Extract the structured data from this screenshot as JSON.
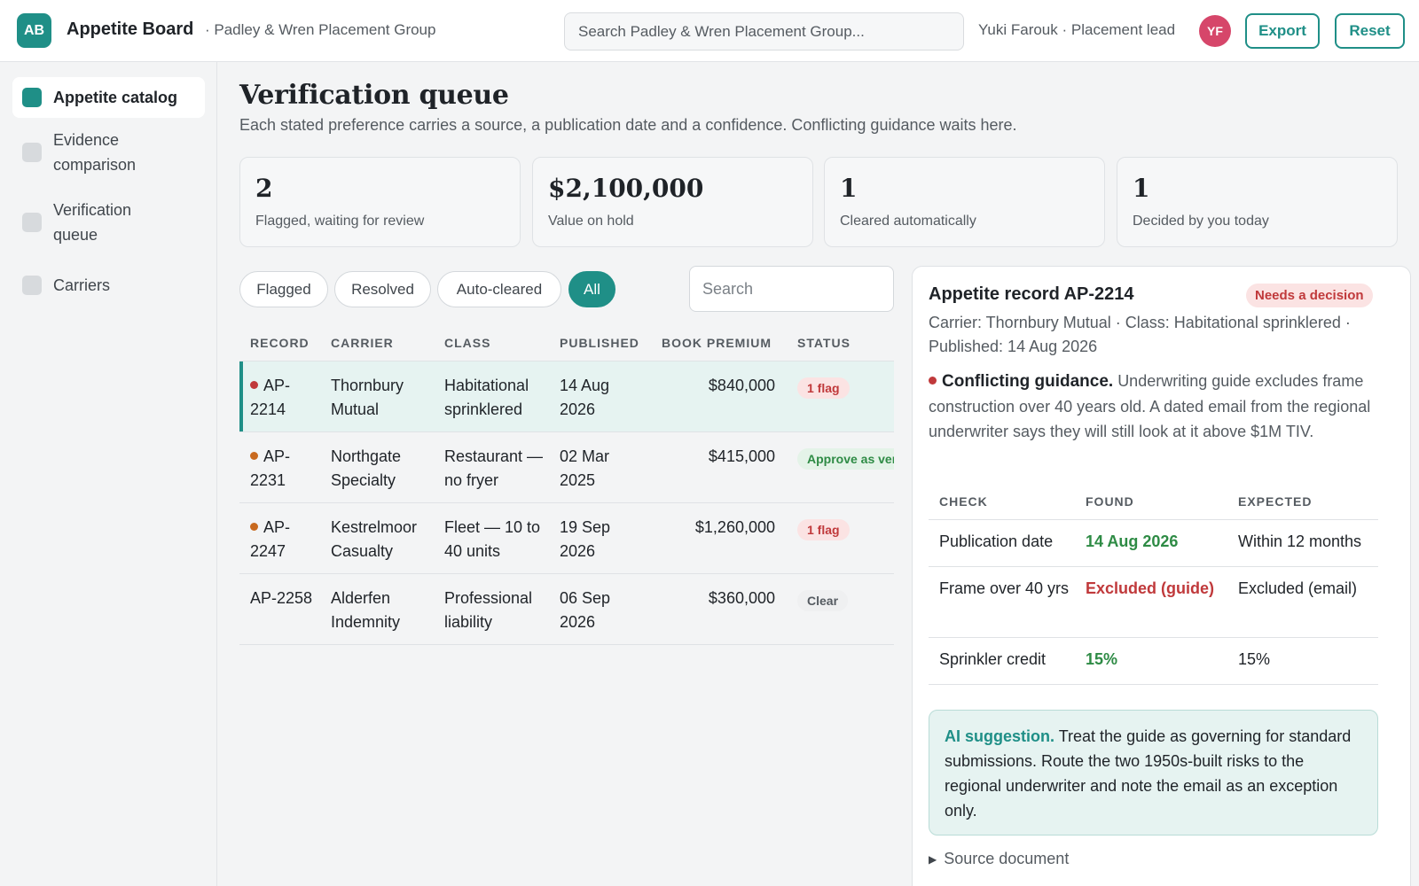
{
  "app": {
    "logo": "AB",
    "title": "Appetite Board",
    "org": "· Padley & Wren Placement Group"
  },
  "header": {
    "search_placeholder": "Search Padley & Wren Placement Group...",
    "user": "Yuki Farouk · Placement lead",
    "avatar": "YF",
    "export_label": "Export",
    "reset_label": "Reset"
  },
  "sidebar": {
    "items": [
      {
        "label": "Appetite catalog",
        "active": true
      },
      {
        "label": "Evidence comparison",
        "active": false
      },
      {
        "label": "Verification queue",
        "active": false
      },
      {
        "label": "Carriers",
        "active": false
      }
    ]
  },
  "page": {
    "title": "Verification queue",
    "subtitle": "Each stated preference carries a source, a publication date and a confidence. Conflicting guidance waits here."
  },
  "stats": [
    {
      "value": "2",
      "label": "Flagged, waiting for review"
    },
    {
      "value": "$2,100,000",
      "label": "Value on hold"
    },
    {
      "value": "1",
      "label": "Cleared automatically"
    },
    {
      "value": "1",
      "label": "Decided by you today"
    }
  ],
  "filters": [
    "Flagged",
    "Resolved",
    "Auto-cleared",
    "All"
  ],
  "filter_active": "All",
  "table_search_placeholder": "Search",
  "table": {
    "headers": [
      "RECORD",
      "CARRIER",
      "CLASS",
      "PUBLISHED",
      "BOOK PREMIUM",
      "STATUS"
    ],
    "rows": [
      {
        "record": "AP-2214",
        "carrier": "Thornbury Mutual",
        "class": "Habitational sprinklered",
        "published": "14 Aug 2026",
        "premium": "$840,000",
        "status": "1 flag",
        "status_type": "flag",
        "dot": "#c0393b",
        "selected": true
      },
      {
        "record": "AP-2231",
        "carrier": "Northgate Specialty",
        "class": "Restaurant — no fryer",
        "published": "02 Mar 2025",
        "premium": "$415,000",
        "status": "Approve as verified",
        "status_type": "ok",
        "dot": "#c8691f",
        "selected": false
      },
      {
        "record": "AP-2247",
        "carrier": "Kestrelmoor Casualty",
        "class": "Fleet — 10 to 40 units",
        "published": "19 Sep 2026",
        "premium": "$1,260,000",
        "status": "1 flag",
        "status_type": "flag",
        "dot": "#c8691f",
        "selected": false
      },
      {
        "record": "AP-2258",
        "carrier": "Alderfen Indemnity",
        "class": "Professional liability",
        "published": "06 Sep 2026",
        "premium": "$360,000",
        "status": "Clear",
        "status_type": "clear",
        "dot": null,
        "selected": false
      }
    ]
  },
  "detail": {
    "title": "Appetite record AP-2214",
    "badge": "Needs a decision",
    "meta": "Carrier: Thornbury Mutual · Class: Habitational sprinklered · Published: 14 Aug 2026",
    "conflict_label": "Conflicting guidance.",
    "conflict_text": "Underwriting guide excludes frame construction over 40 years old. A dated email from the regional underwriter says they will still look at it above $1M TIV.",
    "checks_headers": [
      "CHECK",
      "FOUND",
      "EXPECTED"
    ],
    "checks": [
      {
        "check": "Publication date",
        "found": "14 Aug 2026",
        "found_state": "good",
        "expected": "Within 12 months"
      },
      {
        "check": "Frame over 40 yrs",
        "found": "Excluded (guide)",
        "found_state": "bad",
        "expected": "Excluded (email)"
      },
      {
        "check": "Sprinkler credit",
        "found": "15%",
        "found_state": "good",
        "expected": "15%"
      }
    ],
    "ai_label": "AI suggestion.",
    "ai_text": "Treat the guide as governing for standard submissions. Route the two 1950s-built risks to the regional underwriter and note the email as an exception only.",
    "source_label": "Source document"
  }
}
